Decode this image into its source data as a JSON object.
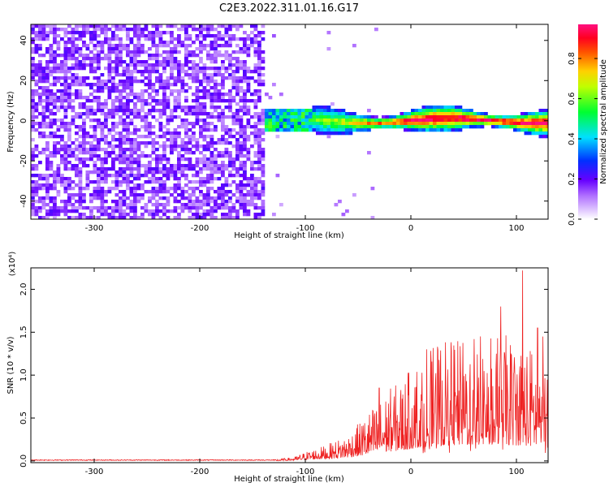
{
  "figure_title": "C2E3.2022.311.01.16.G17",
  "colorbar": {
    "label": "Normalized spectral amplitude",
    "ticks": [
      "0.0",
      "0.2",
      "0.4",
      "0.6",
      "0.8"
    ],
    "tick_values": [
      0.0,
      0.2,
      0.4,
      0.6,
      0.8
    ],
    "range": [
      0,
      0.97
    ],
    "colormap": [
      "#ffffff",
      "#7a00ff",
      "#0028ff",
      "#00ffff",
      "#00ff00",
      "#ffff00",
      "#ff6000",
      "#ff0030",
      "#ff1080"
    ]
  },
  "chart_data": [
    {
      "type": "heatmap",
      "title": "C2E3.2022.311.01.16.G17",
      "xlabel": "Height of straight line (km)",
      "ylabel": "Frequency (Hz)",
      "xlim": [
        -360,
        130
      ],
      "ylim": [
        -49,
        48
      ],
      "x_ticks": [
        -300,
        -200,
        -100,
        0,
        100
      ],
      "x_tick_labels": [
        "-300",
        "-200",
        "-100",
        "0",
        "100"
      ],
      "y_ticks": [
        -40,
        -20,
        0,
        20,
        40
      ],
      "y_tick_labels": [
        "-40",
        "-20",
        "0",
        "20",
        "40"
      ],
      "description_values": {
        "noise_region_x": [
          -360,
          -140
        ],
        "noise_amplitude": 0.15,
        "signal_start_x": -138,
        "signal_center_hz": 0,
        "signal_peak_amplitude": 0.95
      }
    },
    {
      "type": "line",
      "xlabel": "Height of straight line (km)",
      "ylabel": "SNR (10 * v/v)",
      "multiplier_label": "(x10⁴)",
      "xlim": [
        -360,
        130
      ],
      "ylim": [
        -0.02,
        2.25
      ],
      "x_ticks": [
        -300,
        -200,
        -100,
        0,
        100
      ],
      "x_tick_labels": [
        "-300",
        "-200",
        "-100",
        "0",
        "100"
      ],
      "y_ticks": [
        0.0,
        0.5,
        1.0,
        1.5,
        2.0
      ],
      "y_tick_labels": [
        "0.0",
        "0.5",
        "1.0",
        "1.5",
        "2.0"
      ],
      "line_color": "#ee2020",
      "series": [
        {
          "x": [
            -360,
            -300,
            -200,
            -130,
            -110,
            -100,
            -80,
            -60,
            -50,
            -40,
            -30,
            -20,
            -10,
            0,
            10,
            20,
            30,
            40,
            50,
            60,
            70,
            80,
            90,
            100,
            106,
            110,
            120,
            130
          ],
          "values": [
            0.01,
            0.01,
            0.01,
            0.01,
            0.03,
            0.07,
            0.12,
            0.2,
            0.28,
            0.38,
            0.45,
            0.55,
            0.6,
            0.7,
            0.8,
            0.85,
            0.9,
            0.9,
            0.92,
            0.95,
            0.95,
            0.95,
            0.95,
            0.9,
            0.92,
            0.88,
            0.85,
            0.8
          ]
        }
      ],
      "peak_points": [
        {
          "x": 106,
          "y": 2.22
        },
        {
          "x": 60,
          "y": 1.5
        },
        {
          "x": 85,
          "y": 1.8
        },
        {
          "x": 60,
          "y": 1.42
        },
        {
          "x": 120,
          "y": 1.55
        },
        {
          "x": 125,
          "y": 1.45
        },
        {
          "x": -30,
          "y": 0.85
        },
        {
          "x": 15,
          "y": 1.3
        },
        {
          "x": 13,
          "y": 0.1
        }
      ]
    }
  ]
}
